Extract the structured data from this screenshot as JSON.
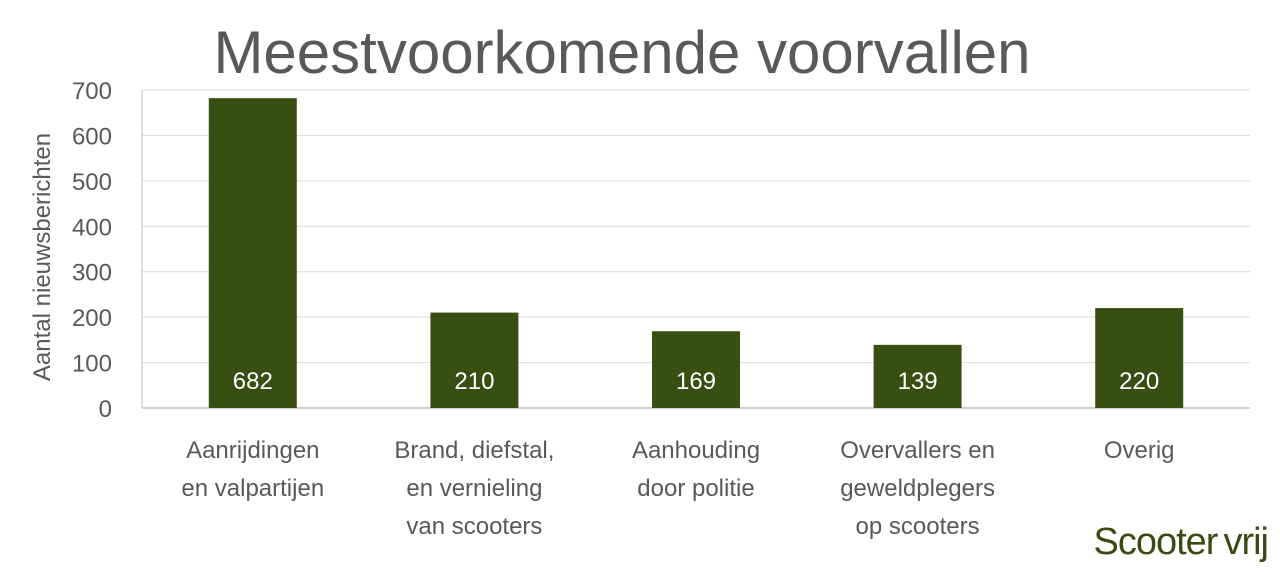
{
  "chart_data": {
    "type": "bar",
    "title": "Meestvoorkomende voorvallen",
    "ylabel": "Aantal nieuwsberichten",
    "xlabel": "",
    "ylim": [
      0,
      700
    ],
    "yticks": [
      0,
      100,
      200,
      300,
      400,
      500,
      600,
      700
    ],
    "grid": true,
    "categories": [
      [
        "Aanrijdingen",
        "en valpartijen"
      ],
      [
        "Brand, diefstal,",
        "en vernieling",
        "van scooters"
      ],
      [
        "Aanhouding",
        "door politie"
      ],
      [
        "Overvallers en",
        "geweldplegers",
        "op scooters"
      ],
      [
        "Overig"
      ]
    ],
    "values": [
      682,
      210,
      169,
      139,
      220
    ],
    "bar_color": "#375012",
    "label_color": "#ffffff"
  },
  "logo": {
    "part1": "Scooter",
    "part2": "vrij",
    "color": "#3a4a14"
  }
}
